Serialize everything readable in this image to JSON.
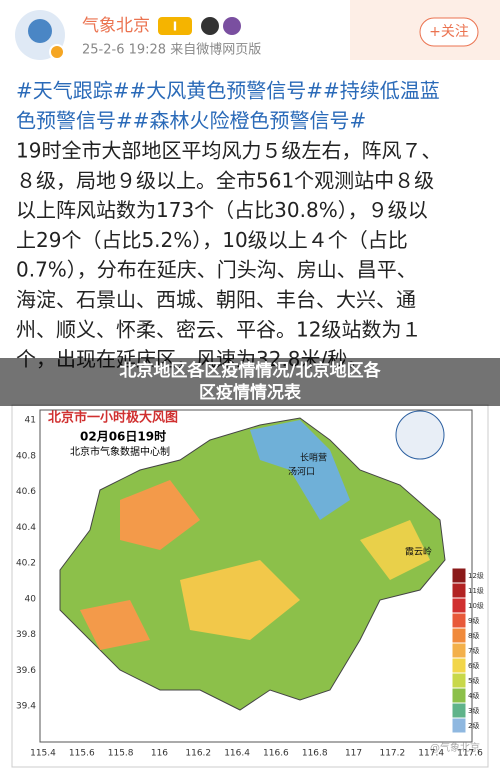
{
  "header": {
    "name": "气象北京",
    "badge": "I",
    "meta": "25-2-6 19:28  来自微博网页版",
    "follow": "+关注"
  },
  "post": {
    "tags": [
      "#天气跟踪##大风黄色预警信号##持续低温蓝",
      "色预警信号##森林火险橙色预警信号#"
    ],
    "lines": [
      "19时全市大部地区平均风力５级左右，阵风７、",
      "８级，局地９级以上。全市561个观测站中８级",
      "以上阵风站数为173个（占比30.8%），９级以",
      "上29个（占比5.2%），10级以上４个（占比",
      "0.7%），分布在延庆、门头沟、房山、昌平、",
      "海淀、石景山、西城、朝阳、丰台、大兴、通",
      "州、顺义、怀柔、密云、平谷。12级站数为１",
      "个，出现在延庆区，风速为32.8米/秒。"
    ]
  },
  "overlay": {
    "lines": [
      "北京地区各区疫情情况/北京地区各",
      "区疫情情况表"
    ]
  },
  "map": {
    "title": "北京市一小时极大风图",
    "time": "02月06日19时",
    "source": "北京市气象数据中心制",
    "yticks": [
      "41",
      "40.8",
      "40.6",
      "40.4",
      "40.2",
      "40",
      "39.8",
      "39.6",
      "39.4"
    ],
    "xticks": [
      "115.4",
      "115.6",
      "115.8",
      "116",
      "116.2",
      "116.4",
      "116.6",
      "116.8",
      "117",
      "117.2",
      "117.4",
      "117.6"
    ],
    "places": [
      "长哨营",
      "汤河口",
      "霞云岭"
    ],
    "legend": [
      "12级",
      "11级",
      "10级",
      "9级",
      "8级",
      "7级",
      "6级",
      "5级",
      "4级",
      "3级",
      "2级"
    ],
    "watermark": "@气象北京"
  }
}
